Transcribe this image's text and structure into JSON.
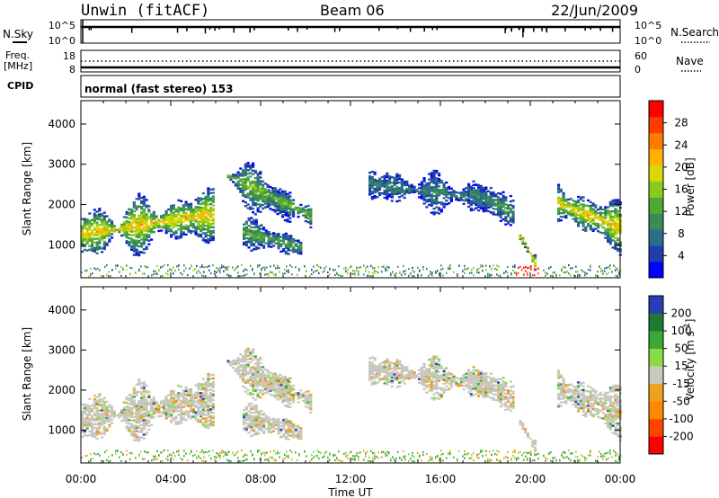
{
  "header": {
    "station": "Unwin (fitACF)",
    "beam": "Beam 06",
    "date": "22/Jun/2009"
  },
  "strip_labels": {
    "nsky": "N.Sky",
    "nsky_ticks": [
      "10^5",
      "10^0"
    ],
    "nsearch": "N.Search",
    "nsearch_ticks": [
      "10^5",
      "10^0"
    ],
    "freq": "Freq.",
    "freq_unit": "[MHz]",
    "freq_ticks": [
      "18",
      "8"
    ],
    "nave": "Nave",
    "nave_ticks": [
      "60",
      "0"
    ],
    "cpid": "CPID",
    "cpid_text": "normal (fast stereo) 153"
  },
  "chart_data": [
    {
      "type": "heatmap",
      "title": "",
      "parameter": "Power",
      "ylabel": "Slant Range [km]",
      "xlabel": "",
      "ylim": [
        180,
        4580
      ],
      "yticks": [
        1000,
        2000,
        3000,
        4000
      ],
      "xticks": [
        "00:00",
        "04:00",
        "08:00",
        "12:00",
        "16:00",
        "20:00",
        "00:00"
      ],
      "colorbar": {
        "label": "Power [dB]",
        "ticks": [
          "4",
          "8",
          "12",
          "16",
          "20",
          "24",
          "28"
        ],
        "colors": [
          "#0000ff",
          "#1f3ea8",
          "#2e6b8c",
          "#3a8a5a",
          "#4fa83a",
          "#8fc81c",
          "#d8d80a",
          "#ffb000",
          "#ff7a00",
          "#ff3c00",
          "#ff0000"
        ]
      },
      "bands": [
        {
          "t0": 0.0,
          "t1": 5.9,
          "r0": 900,
          "r1": 2500,
          "peak": 20,
          "start_range": 1250,
          "end_range": 1750
        },
        {
          "t0": 6.5,
          "t1": 9.3,
          "r0": 1500,
          "r1": 2900,
          "peak": 14,
          "start_range": 2700,
          "end_range": 1900
        },
        {
          "t0": 8.3,
          "t1": 10.2,
          "r0": 1500,
          "r1": 2500,
          "peak": 14,
          "start_range": 2200,
          "end_range": 1700
        },
        {
          "t0": 7.2,
          "t1": 9.8,
          "r0": 700,
          "r1": 1600,
          "peak": 12,
          "start_range": 1300,
          "end_range": 900
        },
        {
          "t0": 12.8,
          "t1": 18.2,
          "r0": 1800,
          "r1": 2900,
          "peak": 8,
          "start_range": 2500,
          "end_range": 2100
        },
        {
          "t0": 17.2,
          "t1": 19.2,
          "r0": 1700,
          "r1": 2700,
          "peak": 10,
          "start_range": 2300,
          "end_range": 1800
        },
        {
          "t0": 21.2,
          "t1": 24.0,
          "r0": 1100,
          "r1": 2600,
          "peak": 20,
          "start_range": 2000,
          "end_range": 1400
        },
        {
          "t0": 19.5,
          "t1": 20.2,
          "r0": 400,
          "r1": 1300,
          "peak": 22,
          "start_range": 1200,
          "end_range": 500
        }
      ]
    },
    {
      "type": "heatmap",
      "title": "",
      "parameter": "Velocity",
      "ylabel": "Slant Range [km]",
      "xlabel": "Time UT",
      "ylim": [
        180,
        4580
      ],
      "yticks": [
        1000,
        2000,
        3000,
        4000
      ],
      "xticks": [
        "00:00",
        "04:00",
        "08:00",
        "12:00",
        "16:00",
        "20:00",
        "00:00"
      ],
      "colorbar": {
        "label": "Velocity [m s^-1]",
        "ticks": [
          "200",
          "100",
          "50",
          "15",
          "-15",
          "-50",
          "-100",
          "-200"
        ],
        "colors": [
          "#2a3cb8",
          "#1f7a32",
          "#3caa32",
          "#88dd44",
          "#c8c8c0",
          "#f0a020",
          "#ff8800",
          "#ff4400",
          "#ff0000"
        ]
      },
      "dominant_value": "-15 to 15 (ground scatter, grey)"
    }
  ]
}
